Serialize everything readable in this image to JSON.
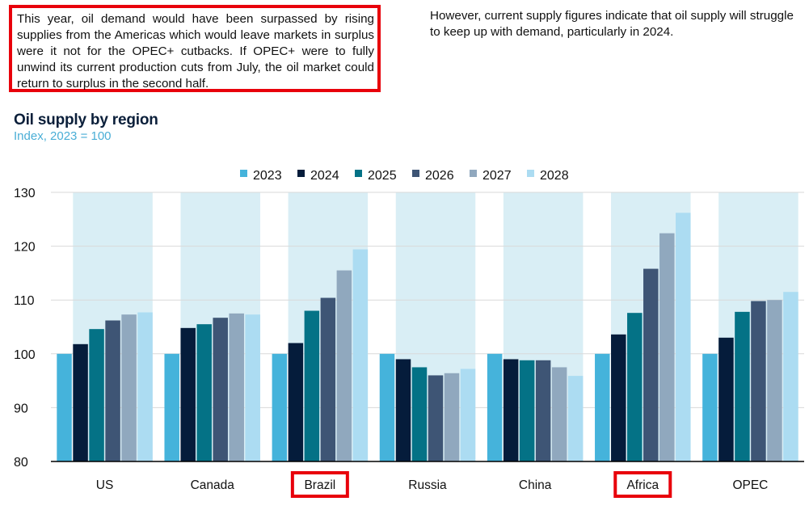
{
  "notes": {
    "left": "This year, oil demand would have been surpassed by rising supplies from the Americas which would leave markets in surplus were it not for the OPEC+ cutbacks. If OPEC+ were to fully unwind its current production cuts from July, the oil market could return to surplus in the second half.",
    "right": "However, current supply figures indicate that oil supply will struggle to keep up with demand, particularly in 2024."
  },
  "chart_data": {
    "type": "bar",
    "title": "Oil supply by region",
    "subtitle": "Index, 2023 = 100",
    "xlabel": "",
    "ylabel": "",
    "ylim": [
      80,
      130
    ],
    "yticks": [
      80,
      90,
      100,
      110,
      120,
      130
    ],
    "grid": true,
    "legend_position": "top-center",
    "categories": [
      "US",
      "Canada",
      "Brazil",
      "Russia",
      "China",
      "Africa",
      "OPEC"
    ],
    "highlighted_categories": [
      "Brazil",
      "Africa"
    ],
    "series": [
      {
        "name": "2023",
        "color": "#45b3db",
        "values": [
          100,
          100,
          100,
          100,
          100,
          100,
          100
        ]
      },
      {
        "name": "2024",
        "color": "#051c3b",
        "values": [
          101.8,
          104.8,
          102,
          99,
          99,
          103.6,
          103
        ]
      },
      {
        "name": "2025",
        "color": "#047286",
        "values": [
          104.6,
          105.5,
          108,
          97.5,
          98.8,
          107.6,
          107.8
        ]
      },
      {
        "name": "2026",
        "color": "#3e5575",
        "values": [
          106.2,
          106.7,
          110.4,
          96,
          98.8,
          115.8,
          109.8
        ]
      },
      {
        "name": "2027",
        "color": "#90a8be",
        "values": [
          107.3,
          107.5,
          115.5,
          96.4,
          97.5,
          122.4,
          110
        ]
      },
      {
        "name": "2028",
        "color": "#acdcf2",
        "values": [
          107.7,
          107.3,
          119.4,
          97.2,
          95.9,
          126.2,
          111.5
        ]
      }
    ]
  },
  "colors": {
    "band": "#d9eef5",
    "grid": "#d9d9d9",
    "axis": "#000000",
    "highlight": "#e8000b"
  }
}
